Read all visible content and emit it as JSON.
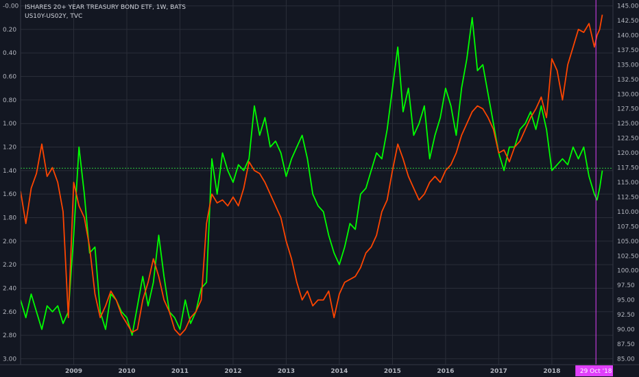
{
  "legend": {
    "primary": "ISHARES 20+ YEAR TREASURY BOND ETF, 1W, BATS",
    "secondary": "US10Y-US02Y, TVC"
  },
  "chart_data": {
    "type": "line",
    "left_axis": {
      "inverted": true,
      "range": [
        -0.05,
        3.05
      ],
      "ticks": [
        "-0.00",
        "0.20",
        "0.40",
        "0.60",
        "0.80",
        "1.00",
        "1.20",
        "1.40",
        "1.60",
        "1.80",
        "2.00",
        "2.20",
        "2.40",
        "2.60",
        "2.80",
        "3.00"
      ]
    },
    "right_axis": {
      "range": [
        84.0,
        146.0
      ],
      "ticks": [
        "145.00",
        "142.50",
        "140.00",
        "137.50",
        "135.00",
        "132.50",
        "130.00",
        "127.50",
        "125.00",
        "122.50",
        "120.00",
        "117.50",
        "115.00",
        "112.50",
        "110.00",
        "107.50",
        "105.00",
        "102.50",
        "100.00",
        "97.50",
        "95.00",
        "92.50",
        "90.00",
        "87.50",
        "85.00"
      ]
    },
    "x_axis": {
      "range": [
        2008.0,
        2019.15
      ],
      "ticks": [
        {
          "t": 2009.0,
          "label": "2009"
        },
        {
          "t": 2010.0,
          "label": "2010"
        },
        {
          "t": 2011.0,
          "label": "2011"
        },
        {
          "t": 2012.0,
          "label": "2012"
        },
        {
          "t": 2013.0,
          "label": "2013"
        },
        {
          "t": 2014.0,
          "label": "2014"
        },
        {
          "t": 2015.0,
          "label": "2015"
        },
        {
          "t": 2016.0,
          "label": "2016"
        },
        {
          "t": 2017.0,
          "label": "2017"
        },
        {
          "t": 2018.0,
          "label": "2018"
        }
      ]
    },
    "crosshair": {
      "t": 2018.83,
      "label": "29 Oct '18",
      "level_left": 1.38
    },
    "colors": {
      "green": "#00ff00",
      "red": "#ff4500",
      "crosshair": "#e040fb",
      "level": "#2ecc40"
    },
    "series": [
      {
        "axis": "left",
        "color": "#00ff00",
        "x": [
          2008.0,
          2008.1,
          2008.2,
          2008.3,
          2008.4,
          2008.5,
          2008.6,
          2008.7,
          2008.8,
          2008.9,
          2009.0,
          2009.1,
          2009.2,
          2009.3,
          2009.4,
          2009.5,
          2009.6,
          2009.7,
          2009.8,
          2009.9,
          2010.0,
          2010.1,
          2010.2,
          2010.3,
          2010.4,
          2010.5,
          2010.6,
          2010.7,
          2010.8,
          2010.9,
          2011.0,
          2011.1,
          2011.2,
          2011.3,
          2011.4,
          2011.5,
          2011.6,
          2011.7,
          2011.8,
          2011.9,
          2012.0,
          2012.1,
          2012.2,
          2012.3,
          2012.4,
          2012.5,
          2012.6,
          2012.7,
          2012.8,
          2012.9,
          2013.0,
          2013.1,
          2013.2,
          2013.3,
          2013.4,
          2013.5,
          2013.6,
          2013.7,
          2013.8,
          2013.9,
          2014.0,
          2014.1,
          2014.2,
          2014.3,
          2014.4,
          2014.5,
          2014.6,
          2014.7,
          2014.8,
          2014.9,
          2015.0,
          2015.1,
          2015.2,
          2015.3,
          2015.4,
          2015.5,
          2015.6,
          2015.7,
          2015.8,
          2015.9,
          2016.0,
          2016.1,
          2016.2,
          2016.3,
          2016.4,
          2016.5,
          2016.6,
          2016.7,
          2016.8,
          2016.9,
          2017.0,
          2017.1,
          2017.2,
          2017.3,
          2017.4,
          2017.5,
          2017.6,
          2017.7,
          2017.8,
          2017.9,
          2018.0,
          2018.1,
          2018.2,
          2018.3,
          2018.4,
          2018.5,
          2018.6,
          2018.7,
          2018.8,
          2018.85,
          2018.9,
          2018.95
        ],
        "values": [
          2.5,
          2.65,
          2.45,
          2.6,
          2.75,
          2.55,
          2.6,
          2.55,
          2.7,
          2.6,
          1.95,
          1.2,
          1.6,
          2.1,
          2.05,
          2.6,
          2.75,
          2.45,
          2.5,
          2.6,
          2.65,
          2.8,
          2.55,
          2.3,
          2.55,
          2.35,
          1.95,
          2.3,
          2.6,
          2.65,
          2.75,
          2.5,
          2.7,
          2.6,
          2.4,
          2.35,
          1.3,
          1.6,
          1.25,
          1.4,
          1.5,
          1.35,
          1.4,
          1.3,
          0.85,
          1.1,
          0.95,
          1.2,
          1.15,
          1.25,
          1.45,
          1.3,
          1.2,
          1.1,
          1.3,
          1.6,
          1.7,
          1.75,
          1.95,
          2.1,
          2.2,
          2.05,
          1.85,
          1.9,
          1.6,
          1.55,
          1.4,
          1.25,
          1.3,
          1.05,
          0.7,
          0.35,
          0.9,
          0.7,
          1.1,
          1.0,
          0.85,
          1.3,
          1.1,
          0.95,
          0.7,
          0.85,
          1.1,
          0.7,
          0.45,
          0.1,
          0.55,
          0.5,
          0.75,
          1.0,
          1.25,
          1.4,
          1.2,
          1.2,
          1.05,
          1.0,
          0.9,
          1.05,
          0.85,
          1.05,
          1.4,
          1.35,
          1.3,
          1.35,
          1.2,
          1.3,
          1.2,
          1.45,
          1.6,
          1.65,
          1.55,
          1.4
        ]
      },
      {
        "axis": "right",
        "color": "#ff4500",
        "x": [
          2008.0,
          2008.1,
          2008.2,
          2008.3,
          2008.4,
          2008.5,
          2008.6,
          2008.7,
          2008.8,
          2008.9,
          2009.0,
          2009.1,
          2009.2,
          2009.3,
          2009.4,
          2009.5,
          2009.6,
          2009.7,
          2009.8,
          2009.9,
          2010.0,
          2010.1,
          2010.2,
          2010.3,
          2010.4,
          2010.5,
          2010.6,
          2010.7,
          2010.8,
          2010.9,
          2011.0,
          2011.1,
          2011.2,
          2011.3,
          2011.4,
          2011.5,
          2011.6,
          2011.7,
          2011.8,
          2011.9,
          2012.0,
          2012.1,
          2012.2,
          2012.3,
          2012.4,
          2012.5,
          2012.6,
          2012.7,
          2012.8,
          2012.9,
          2013.0,
          2013.1,
          2013.2,
          2013.3,
          2013.4,
          2013.5,
          2013.6,
          2013.7,
          2013.8,
          2013.9,
          2014.0,
          2014.1,
          2014.2,
          2014.3,
          2014.4,
          2014.5,
          2014.6,
          2014.7,
          2014.8,
          2014.9,
          2015.0,
          2015.1,
          2015.2,
          2015.3,
          2015.4,
          2015.5,
          2015.6,
          2015.7,
          2015.8,
          2015.9,
          2016.0,
          2016.1,
          2016.2,
          2016.3,
          2016.4,
          2016.5,
          2016.6,
          2016.7,
          2016.8,
          2016.9,
          2017.0,
          2017.1,
          2017.2,
          2017.3,
          2017.4,
          2017.5,
          2017.6,
          2017.7,
          2017.8,
          2017.9,
          2018.0,
          2018.1,
          2018.2,
          2018.3,
          2018.4,
          2018.5,
          2018.6,
          2018.7,
          2018.8,
          2018.85,
          2018.9,
          2018.95
        ],
        "values": [
          113.5,
          108.0,
          114.0,
          116.5,
          121.5,
          116.0,
          117.5,
          115.0,
          110.0,
          92.0,
          115.0,
          111.0,
          109.0,
          104.0,
          96.0,
          92.0,
          94.0,
          96.5,
          95.0,
          92.5,
          91.0,
          89.5,
          90.0,
          95.0,
          98.0,
          102.0,
          99.0,
          95.0,
          93.0,
          90.0,
          89.0,
          90.0,
          92.0,
          93.0,
          95.0,
          108.0,
          113.0,
          111.5,
          112.0,
          111.0,
          112.5,
          111.0,
          114.0,
          118.5,
          117.0,
          116.5,
          115.0,
          113.0,
          111.0,
          109.0,
          105.0,
          102.0,
          98.0,
          95.0,
          96.5,
          94.0,
          95.0,
          95.0,
          96.5,
          92.0,
          96.0,
          98.0,
          98.5,
          99.0,
          100.5,
          103.0,
          104.0,
          106.0,
          110.0,
          112.0,
          117.0,
          121.5,
          119.0,
          116.0,
          114.0,
          112.0,
          113.0,
          115.0,
          116.0,
          115.0,
          117.0,
          118.0,
          120.0,
          123.0,
          125.0,
          127.0,
          128.0,
          127.5,
          126.0,
          124.0,
          120.0,
          120.5,
          118.5,
          121.0,
          122.0,
          124.0,
          126.0,
          127.5,
          129.5,
          126.0,
          136.0,
          134.0,
          129.0,
          135.0,
          138.0,
          141.0,
          140.5,
          142.0,
          138.0,
          140.0,
          141.0,
          143.5
        ]
      }
    ]
  }
}
